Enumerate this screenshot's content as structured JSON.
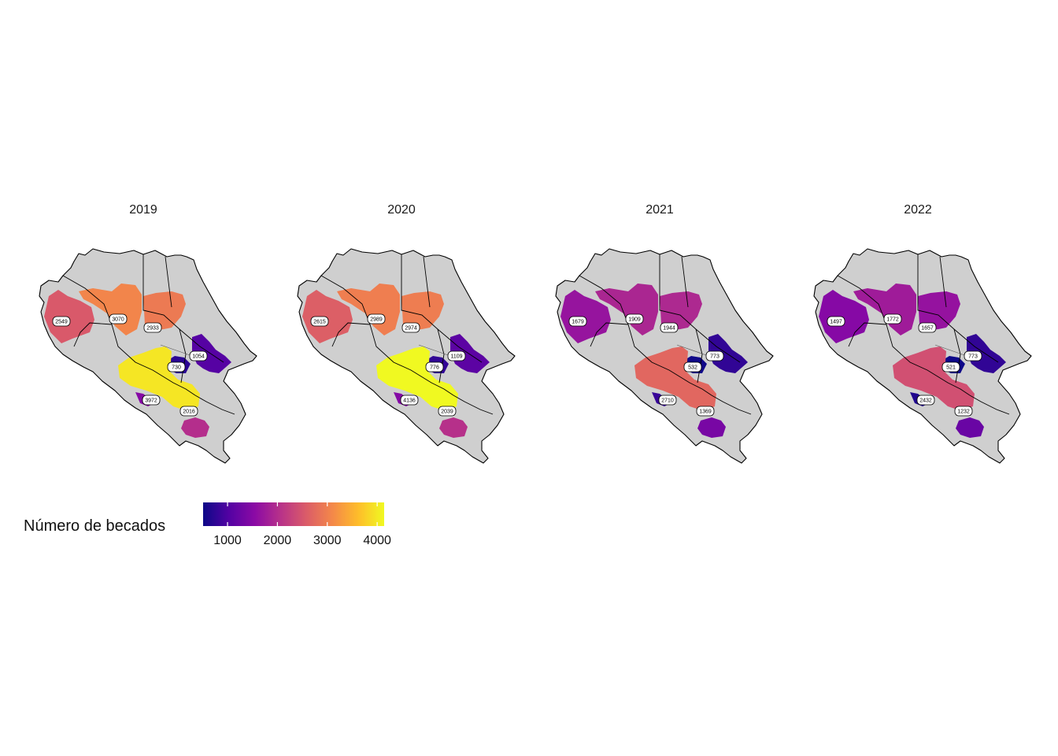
{
  "chart_data": {
    "type": "map",
    "fill_variable": "Número de becados",
    "color_scale": "plasma",
    "legend": {
      "title": "Número de becados",
      "ticks": [
        1000,
        2000,
        3000,
        4000
      ],
      "range": [
        510,
        4140
      ],
      "colors": [
        "#0d0887",
        "#5302a3",
        "#8b0aa5",
        "#b83289",
        "#db5c68",
        "#f48849",
        "#febd2a",
        "#f0f921"
      ],
      "position": "bottom-left"
    },
    "facets": [
      {
        "year": "2019",
        "values": [
          {
            "region": "Chorotega",
            "value": 2549
          },
          {
            "region": "Huetar Norte oeste",
            "value": 3070
          },
          {
            "region": "Huetar Norte este",
            "value": 2933
          },
          {
            "region": "Huetar Caribe",
            "value": 1054
          },
          {
            "region": "Central norte",
            "value": 730
          },
          {
            "region": "Central",
            "value": 3972
          },
          {
            "region": "Brunca",
            "value": 2016
          }
        ]
      },
      {
        "year": "2020",
        "values": [
          {
            "region": "Chorotega",
            "value": 2615
          },
          {
            "region": "Huetar Norte oeste",
            "value": 2989
          },
          {
            "region": "Huetar Norte este",
            "value": 2974
          },
          {
            "region": "Huetar Caribe",
            "value": 1109
          },
          {
            "region": "Central norte",
            "value": 776
          },
          {
            "region": "Central",
            "value": 4136
          },
          {
            "region": "Brunca",
            "value": 2039
          }
        ]
      },
      {
        "year": "2021",
        "values": [
          {
            "region": "Chorotega",
            "value": 1679
          },
          {
            "region": "Huetar Norte oeste",
            "value": 1909
          },
          {
            "region": "Huetar Norte este",
            "value": 1944
          },
          {
            "region": "Huetar Caribe",
            "value": 773
          },
          {
            "region": "Central norte",
            "value": 532
          },
          {
            "region": "Central",
            "value": 2710
          },
          {
            "region": "Brunca",
            "value": 1369
          }
        ]
      },
      {
        "year": "2022",
        "values": [
          {
            "region": "Chorotega",
            "value": 1497
          },
          {
            "region": "Huetar Norte oeste",
            "value": 1772
          },
          {
            "region": "Huetar Norte este",
            "value": 1657
          },
          {
            "region": "Huetar Caribe",
            "value": 773
          },
          {
            "region": "Central norte",
            "value": 521
          },
          {
            "region": "Central",
            "value": 2432
          },
          {
            "region": "Brunca",
            "value": 1232
          }
        ]
      }
    ]
  }
}
